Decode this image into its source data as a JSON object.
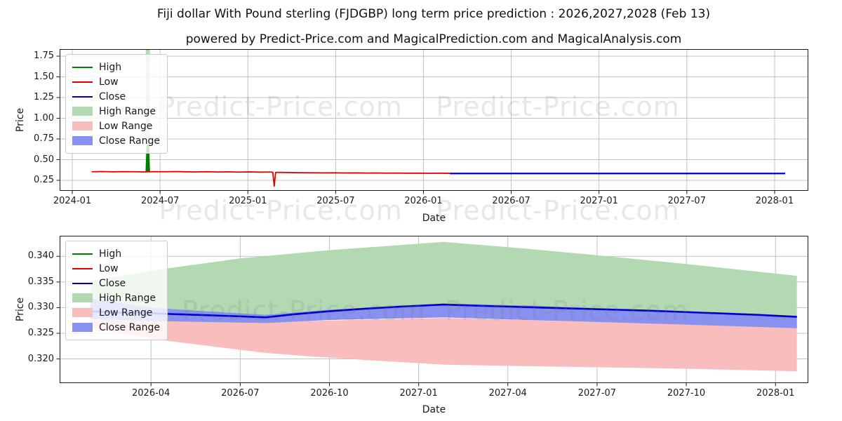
{
  "figure": {
    "title": "Fiji dollar With Pound sterling (FJDGBP) long term price prediction : 2026,2027,2028 (Feb 13)",
    "subtitle": "powered by Predict-Price.com and MagicalPrediction.com and MagicalAnalysis.com",
    "watermark": "Predict-Price.com"
  },
  "colors": {
    "high": "#007d00",
    "low": "#e00000",
    "close": "#0000cd",
    "high_range": "#b2d9b2",
    "low_range": "#f9bdbd",
    "close_range": "#8890f0",
    "grid": "#b0b0b0",
    "spine": "#1a1a1a",
    "watermark": "rgba(120,120,120,0.18)"
  },
  "legend": [
    {
      "label": "High",
      "type": "line",
      "color_key": "high"
    },
    {
      "label": "Low",
      "type": "line",
      "color_key": "low"
    },
    {
      "label": "Close",
      "type": "line",
      "color_key": "close"
    },
    {
      "label": "High Range",
      "type": "patch",
      "color_key": "high_range"
    },
    {
      "label": "Low Range",
      "type": "patch",
      "color_key": "low_range"
    },
    {
      "label": "Close Range",
      "type": "patch",
      "color_key": "close_range"
    }
  ],
  "chart_data": [
    {
      "type": "line",
      "name": "long-term-history-and-prediction",
      "xlabel": "Date",
      "ylabel": "Price",
      "grid": true,
      "legend_position": "upper left",
      "x_range": [
        2023.928,
        2028.192
      ],
      "y_range": [
        0.123,
        1.835
      ],
      "x_ticks": [
        {
          "v": 2024.0,
          "label": "2024-01"
        },
        {
          "v": 2024.5,
          "label": "2024-07"
        },
        {
          "v": 2025.0,
          "label": "2025-01"
        },
        {
          "v": 2025.5,
          "label": "2025-07"
        },
        {
          "v": 2026.0,
          "label": "2026-01"
        },
        {
          "v": 2026.5,
          "label": "2026-07"
        },
        {
          "v": 2027.0,
          "label": "2027-01"
        },
        {
          "v": 2027.5,
          "label": "2027-07"
        },
        {
          "v": 2028.0,
          "label": "2028-01"
        }
      ],
      "y_ticks": [
        {
          "v": 0.25,
          "label": "0.25"
        },
        {
          "v": 0.5,
          "label": "0.50"
        },
        {
          "v": 0.75,
          "label": "0.75"
        },
        {
          "v": 1.0,
          "label": "1.00"
        },
        {
          "v": 1.25,
          "label": "1.25"
        },
        {
          "v": 1.5,
          "label": "1.50"
        },
        {
          "v": 1.75,
          "label": "1.75"
        }
      ],
      "bands": [
        {
          "name": "High Range",
          "color_key": "high_range",
          "upper": [
            [
              2024.418,
              1.835
            ],
            [
              2024.442,
              1.835
            ]
          ],
          "lower": [
            [
              2024.418,
              0.353
            ],
            [
              2024.442,
              0.353
            ]
          ]
        }
      ],
      "series": [
        {
          "name": "High",
          "color_key": "high",
          "width": 3.5,
          "points": [
            [
              2024.424,
              0.353
            ],
            [
              2024.43,
              0.665
            ],
            [
              2024.436,
              0.353
            ]
          ]
        },
        {
          "name": "Low",
          "color_key": "low",
          "width": 1.8,
          "points": [
            [
              2024.11,
              0.354
            ],
            [
              2024.17,
              0.356
            ],
            [
              2024.23,
              0.353
            ],
            [
              2024.29,
              0.355
            ],
            [
              2024.35,
              0.354
            ],
            [
              2024.41,
              0.352
            ],
            [
              2024.47,
              0.355
            ],
            [
              2024.53,
              0.354
            ],
            [
              2024.59,
              0.356
            ],
            [
              2024.65,
              0.353
            ],
            [
              2024.71,
              0.352
            ],
            [
              2024.77,
              0.354
            ],
            [
              2024.83,
              0.351
            ],
            [
              2024.89,
              0.353
            ],
            [
              2024.95,
              0.35
            ],
            [
              2025.01,
              0.352
            ],
            [
              2025.07,
              0.349
            ],
            [
              2025.13,
              0.35
            ],
            [
              2025.142,
              0.347
            ],
            [
              2025.15,
              0.18
            ],
            [
              2025.158,
              0.346
            ],
            [
              2025.19,
              0.346
            ],
            [
              2025.25,
              0.344
            ],
            [
              2025.31,
              0.342
            ],
            [
              2025.37,
              0.341
            ],
            [
              2025.43,
              0.34
            ],
            [
              2025.49,
              0.341
            ],
            [
              2025.55,
              0.339
            ],
            [
              2025.61,
              0.34
            ],
            [
              2025.67,
              0.338
            ],
            [
              2025.73,
              0.339
            ],
            [
              2025.79,
              0.337
            ],
            [
              2025.85,
              0.338
            ],
            [
              2025.91,
              0.336
            ],
            [
              2025.97,
              0.337
            ],
            [
              2026.03,
              0.335
            ],
            [
              2026.09,
              0.336
            ],
            [
              2026.15,
              0.335
            ]
          ]
        },
        {
          "name": "Close",
          "color_key": "close",
          "width": 2.2,
          "points": [
            [
              2026.15,
              0.333
            ],
            [
              2028.06,
              0.333
            ]
          ]
        }
      ]
    },
    {
      "type": "line",
      "name": "prediction-detail-2026-2028",
      "xlabel": "Date",
      "ylabel": "Price",
      "grid": true,
      "legend_position": "upper left",
      "x_range": [
        2025.994,
        2028.092
      ],
      "y_range": [
        0.3153,
        0.344
      ],
      "x_ticks": [
        {
          "v": 2026.25,
          "label": "2026-04"
        },
        {
          "v": 2026.5,
          "label": "2026-07"
        },
        {
          "v": 2026.75,
          "label": "2026-10"
        },
        {
          "v": 2027.0,
          "label": "2027-01"
        },
        {
          "v": 2027.25,
          "label": "2027-04"
        },
        {
          "v": 2027.5,
          "label": "2027-07"
        },
        {
          "v": 2027.75,
          "label": "2027-10"
        },
        {
          "v": 2028.0,
          "label": "2028-01"
        }
      ],
      "y_ticks": [
        {
          "v": 0.32,
          "label": "0.320"
        },
        {
          "v": 0.325,
          "label": "0.325"
        },
        {
          "v": 0.33,
          "label": "0.330"
        },
        {
          "v": 0.335,
          "label": "0.335"
        },
        {
          "v": 0.34,
          "label": "0.340"
        }
      ],
      "bands": [
        {
          "name": "High Range",
          "color_key": "high_range",
          "upper": [
            [
              2026.08,
              0.3352
            ],
            [
              2026.25,
              0.3372
            ],
            [
              2026.5,
              0.3396
            ],
            [
              2026.75,
              0.3412
            ],
            [
              2027.07,
              0.3428
            ],
            [
              2027.3,
              0.3415
            ],
            [
              2027.5,
              0.3402
            ],
            [
              2027.75,
              0.3385
            ],
            [
              2028.06,
              0.3362
            ]
          ],
          "lower": [
            [
              2026.08,
              0.33
            ],
            [
              2026.3,
              0.329
            ],
            [
              2026.57,
              0.328
            ],
            [
              2026.8,
              0.3292
            ],
            [
              2027.07,
              0.3302
            ],
            [
              2027.5,
              0.3295
            ],
            [
              2028.06,
              0.328
            ]
          ]
        },
        {
          "name": "Low Range",
          "color_key": "low_range",
          "upper": [
            [
              2026.08,
              0.3282
            ],
            [
              2026.25,
              0.3278
            ],
            [
              2026.57,
              0.3272
            ],
            [
              2027.07,
              0.328
            ],
            [
              2027.5,
              0.3272
            ],
            [
              2028.06,
              0.3262
            ]
          ],
          "lower": [
            [
              2026.08,
              0.3262
            ],
            [
              2026.17,
              0.325
            ],
            [
              2026.3,
              0.3235
            ],
            [
              2026.45,
              0.3222
            ],
            [
              2026.57,
              0.3212
            ],
            [
              2026.7,
              0.3205
            ],
            [
              2026.85,
              0.3198
            ],
            [
              2027.0,
              0.3192
            ],
            [
              2027.07,
              0.3189
            ],
            [
              2027.3,
              0.3186
            ],
            [
              2027.5,
              0.3184
            ],
            [
              2027.75,
              0.3181
            ],
            [
              2028.06,
              0.3176
            ]
          ]
        },
        {
          "name": "Close Range",
          "color_key": "close_range",
          "upper": [
            [
              2026.08,
              0.3318
            ],
            [
              2026.25,
              0.33
            ],
            [
              2026.42,
              0.3292
            ],
            [
              2026.57,
              0.3286
            ],
            [
              2026.75,
              0.3296
            ],
            [
              2026.95,
              0.3303
            ],
            [
              2027.07,
              0.3308
            ],
            [
              2027.3,
              0.3304
            ],
            [
              2027.5,
              0.3299
            ],
            [
              2027.75,
              0.3293
            ],
            [
              2028.06,
              0.3284
            ]
          ],
          "lower": [
            [
              2026.08,
              0.3278
            ],
            [
              2026.25,
              0.3274
            ],
            [
              2026.57,
              0.327
            ],
            [
              2026.75,
              0.3276
            ],
            [
              2027.07,
              0.3281
            ],
            [
              2027.3,
              0.3276
            ],
            [
              2027.5,
              0.3272
            ],
            [
              2027.75,
              0.3267
            ],
            [
              2028.06,
              0.326
            ]
          ]
        }
      ],
      "series": [
        {
          "name": "Close",
          "color_key": "close",
          "width": 2.6,
          "points": [
            [
              2026.08,
              0.3293
            ],
            [
              2026.17,
              0.329
            ],
            [
              2026.25,
              0.3289
            ],
            [
              2026.33,
              0.3287
            ],
            [
              2026.42,
              0.3285
            ],
            [
              2026.5,
              0.3283
            ],
            [
              2026.57,
              0.3281
            ],
            [
              2026.65,
              0.3287
            ],
            [
              2026.75,
              0.3293
            ],
            [
              2026.85,
              0.3298
            ],
            [
              2026.95,
              0.3302
            ],
            [
              2027.07,
              0.3306
            ],
            [
              2027.2,
              0.3303
            ],
            [
              2027.35,
              0.33
            ],
            [
              2027.5,
              0.3297
            ],
            [
              2027.65,
              0.3294
            ],
            [
              2027.8,
              0.329
            ],
            [
              2027.95,
              0.3286
            ],
            [
              2028.06,
              0.3282
            ]
          ]
        }
      ]
    }
  ]
}
